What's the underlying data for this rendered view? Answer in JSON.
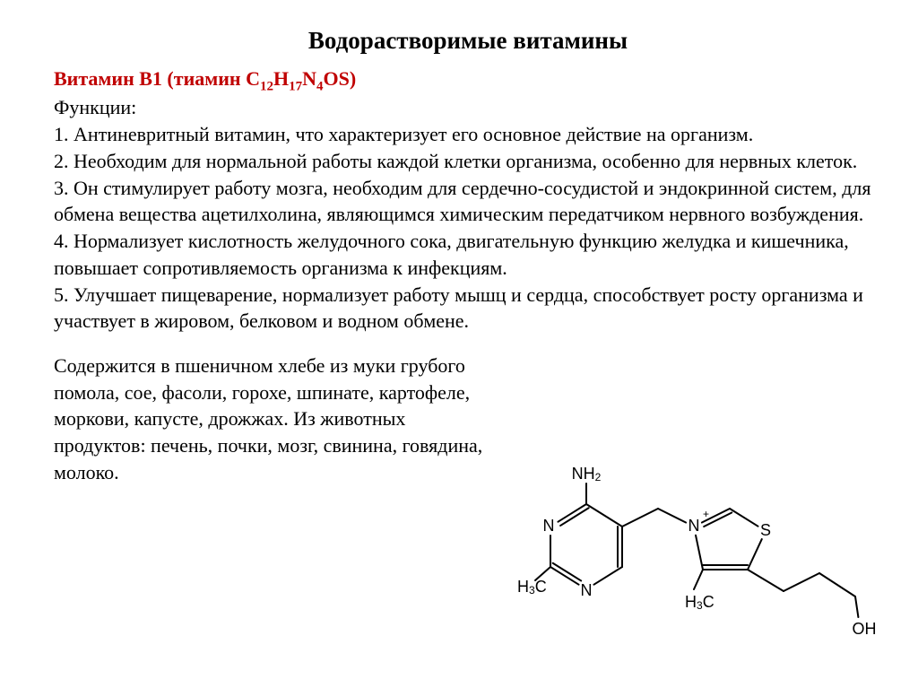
{
  "title": "Водорастворимые витамины",
  "subtitle_prefix": "Витамин В1 (тиамин C",
  "f_c": "12",
  "subtitle_h": "H",
  "f_h": "17",
  "subtitle_n": "N",
  "f_n": "4",
  "subtitle_suffix": "OS)",
  "functions_label": "Функции:",
  "items": [
    "1. Антиневритный витамин, что характеризует его основное действие на организм.",
    "2. Необходим для нормальной работы каждой клетки организма, особенно для нервных клеток.",
    "3. Он стимулирует работу мозга, необходим для сердечно-сосудистой и эндокринной систем, для обмена вещества ацетилхолина, являющимся химическим передатчиком нервного возбуждения.",
    "4. Нормализует кислотность желудочного сока, двигательную функцию желудка и кишечника, повышает сопротивляемость организма к инфекциям.",
    "5. Улучшает пищеварение, нормализует работу мышц и сердца, способствует росту организма и участвует в жировом, белковом и водном обмене."
  ],
  "sources": "Содержится в пшеничном хлебе из муки грубого помола, сое, фасоли, горохе, шпинате, картофеле, моркови, капусте, дрожжах.  Из животных продуктов: печень, почки, мозг, свинина, говядина, молоко.",
  "molecule": {
    "labels": {
      "nh2": "NH",
      "nh2_sub": "2",
      "n1": "N",
      "n2": "N",
      "n3": "N",
      "plus": "+",
      "s": "S",
      "ch3_left": "H",
      "ch3_left_sub": "3",
      "ch3_left_c": "C",
      "ch3_right": "H",
      "ch3_right_sub": "3",
      "ch3_right_c": "C",
      "oh": "OH"
    },
    "style": {
      "stroke": "#000000",
      "stroke_width": 2,
      "font_family": "Arial, sans-serif",
      "atom_fontsize": 18,
      "sub_fontsize": 12,
      "plus_fontsize": 12
    }
  }
}
